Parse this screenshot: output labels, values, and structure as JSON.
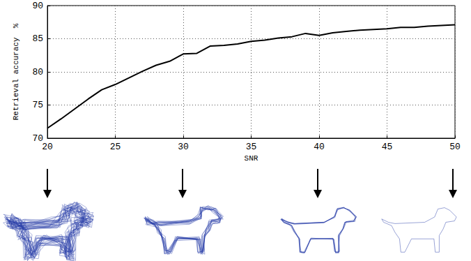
{
  "chart_data": {
    "type": "line",
    "xlabel": "SNR",
    "ylabel": "Retrieval accuracy  %",
    "x": [
      20,
      21,
      22,
      23,
      24,
      25,
      26,
      27,
      28,
      29,
      30,
      31,
      32,
      33,
      34,
      35,
      36,
      37,
      38,
      39,
      40,
      41,
      42,
      43,
      44,
      45,
      46,
      47,
      48,
      49,
      50
    ],
    "values": [
      71.5,
      72.9,
      74.4,
      75.9,
      77.3,
      78.1,
      79.1,
      80.1,
      81.0,
      81.6,
      82.7,
      82.8,
      83.9,
      84.0,
      84.2,
      84.6,
      84.8,
      85.1,
      85.3,
      85.8,
      85.5,
      85.9,
      86.1,
      86.3,
      86.4,
      86.5,
      86.7,
      86.7,
      86.9,
      87.0,
      87.1
    ],
    "color": "#000000",
    "xlim": [
      20,
      50
    ],
    "xticks": [
      20,
      25,
      30,
      35,
      40,
      45,
      50
    ],
    "ylim": [
      70,
      90
    ],
    "yticks": [
      70,
      75,
      80,
      85,
      90
    ],
    "grid": true
  }
}
